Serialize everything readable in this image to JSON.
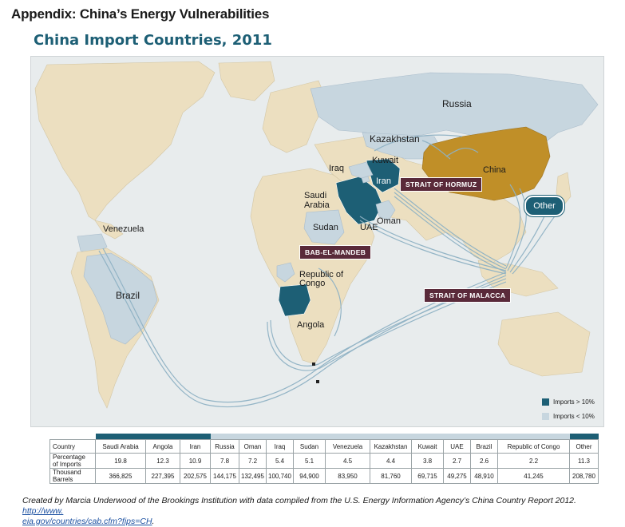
{
  "header": {
    "appendix_title": "Appendix: China’s Energy Vulnerabilities",
    "map_title": "China Import Countries, 2011"
  },
  "colors": {
    "imports_gt_10": "#1d5f75",
    "imports_lt_10": "#c7d6df",
    "china": "#c08f28",
    "chokepoint": "#5a2a3a",
    "land": "#ecdfc0",
    "water": "#e8eced"
  },
  "map": {
    "country_labels": {
      "russia": "Russia",
      "kazakhstan": "Kazakhstan",
      "kuwait": "Kuwait",
      "iraq": "Iraq",
      "iran": "Iran",
      "china": "China",
      "saudi_arabia": "Saudi\nArabia",
      "oman": "Oman",
      "uae": "UAE",
      "sudan": "Sudan",
      "venezuela": "Venezuela",
      "brazil": "Brazil",
      "republic_of_congo": "Republic of\nCongo",
      "angola": "Angola",
      "other": "Other"
    },
    "chokepoints": {
      "hormuz": "STRAIT OF HORMUZ",
      "bab_el_mandeb": "BAB-EL-MANDEB",
      "malacca": "STRAIT OF MALACCA"
    }
  },
  "legend": {
    "gt10": "Imports > 10%",
    "lt10": "Imports < 10%"
  },
  "table": {
    "row_labels": {
      "country": "Country",
      "percentage": "Percentage\nof Imports",
      "barrels": "Thousand\nBarrels"
    },
    "columns": [
      {
        "country": "Saudi Arabia",
        "percentage": "19.8",
        "barrels": "366,825",
        "group": "gt10"
      },
      {
        "country": "Angola",
        "percentage": "12.3",
        "barrels": "227,395",
        "group": "gt10"
      },
      {
        "country": "Iran",
        "percentage": "10.9",
        "barrels": "202,575",
        "group": "gt10"
      },
      {
        "country": "Russia",
        "percentage": "7.8",
        "barrels": "144,175",
        "group": "lt10"
      },
      {
        "country": "Oman",
        "percentage": "7.2",
        "barrels": "132,495",
        "group": "lt10"
      },
      {
        "country": "Iraq",
        "percentage": "5.4",
        "barrels": "100,740",
        "group": "lt10"
      },
      {
        "country": "Sudan",
        "percentage": "5.1",
        "barrels": "94,900",
        "group": "lt10"
      },
      {
        "country": "Venezuela",
        "percentage": "4.5",
        "barrels": "83,950",
        "group": "lt10"
      },
      {
        "country": "Kazakhstan",
        "percentage": "4.4",
        "barrels": "81,760",
        "group": "lt10"
      },
      {
        "country": "Kuwait",
        "percentage": "3.8",
        "barrels": "69,715",
        "group": "lt10"
      },
      {
        "country": "UAE",
        "percentage": "2.7",
        "barrels": "49,275",
        "group": "lt10"
      },
      {
        "country": "Brazil",
        "percentage": "2.6",
        "barrels": "48,910",
        "group": "lt10"
      },
      {
        "country": "Republic of Congo",
        "percentage": "2.2",
        "barrels": "41,245",
        "group": "lt10"
      },
      {
        "country": "Other",
        "percentage": "11.3",
        "barrels": "208,780",
        "group": "gt10"
      }
    ]
  },
  "credit": {
    "text": "Created by Marcia Underwood of the Brookings Institution with data compiled from the U.S. Energy Information Agency’s China Country Report 2012. ",
    "link": "http://www.eia.gov/countries/cab.cfm?fips=CH",
    "link_display": "http://www.\neia.gov/countries/cab.cfm?fips=CH",
    "tail": "."
  }
}
